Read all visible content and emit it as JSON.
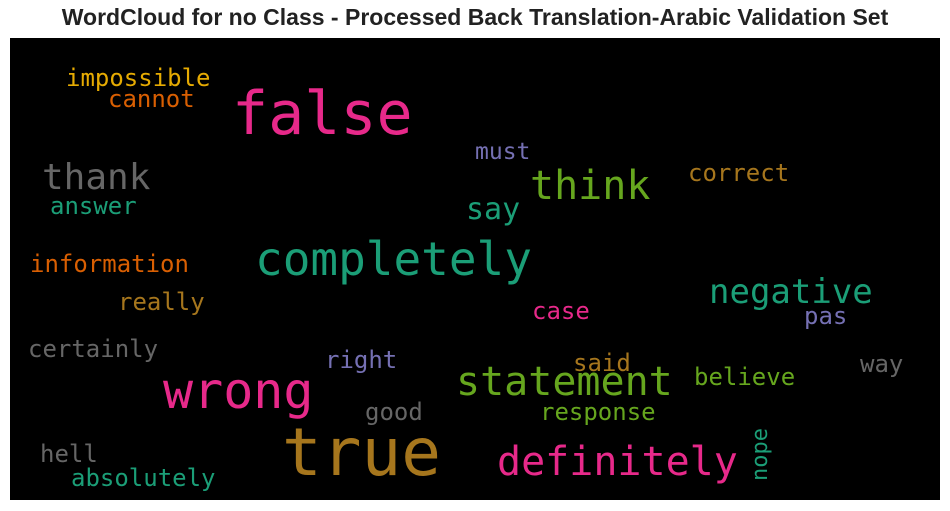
{
  "title": "WordCloud for no Class - Processed Back Translation-Arabic Validation Set",
  "chart_data": {
    "type": "wordcloud",
    "background": "#000000",
    "words": [
      {
        "text": "false",
        "color": "#e7298a"
      },
      {
        "text": "true",
        "color": "#a6761d"
      },
      {
        "text": "completely",
        "color": "#1b9e77"
      },
      {
        "text": "wrong",
        "color": "#e7298a"
      },
      {
        "text": "statement",
        "color": "#66a61e"
      },
      {
        "text": "definitely",
        "color": "#e7298a"
      },
      {
        "text": "think",
        "color": "#66a61e"
      },
      {
        "text": "thank",
        "color": "#666666"
      },
      {
        "text": "negative",
        "color": "#1b9e77"
      },
      {
        "text": "say",
        "color": "#1b9e77"
      },
      {
        "text": "impossible",
        "color": "#e6ab02"
      },
      {
        "text": "cannot",
        "color": "#d95f02"
      },
      {
        "text": "must",
        "color": "#7570b3"
      },
      {
        "text": "correct",
        "color": "#a6761d"
      },
      {
        "text": "answer",
        "color": "#1b9e77"
      },
      {
        "text": "information",
        "color": "#d95f02"
      },
      {
        "text": "really",
        "color": "#a6761d"
      },
      {
        "text": "case",
        "color": "#e7298a"
      },
      {
        "text": "pas",
        "color": "#7570b3"
      },
      {
        "text": "certainly",
        "color": "#666666"
      },
      {
        "text": "right",
        "color": "#7570b3"
      },
      {
        "text": "said",
        "color": "#a6761d"
      },
      {
        "text": "believe",
        "color": "#66a61e"
      },
      {
        "text": "way",
        "color": "#666666"
      },
      {
        "text": "good",
        "color": "#666666"
      },
      {
        "text": "response",
        "color": "#66a61e"
      },
      {
        "text": "hell",
        "color": "#666666"
      },
      {
        "text": "absolutely",
        "color": "#1b9e77"
      },
      {
        "text": "nope",
        "color": "#1b9e77",
        "vertical": true
      }
    ]
  }
}
